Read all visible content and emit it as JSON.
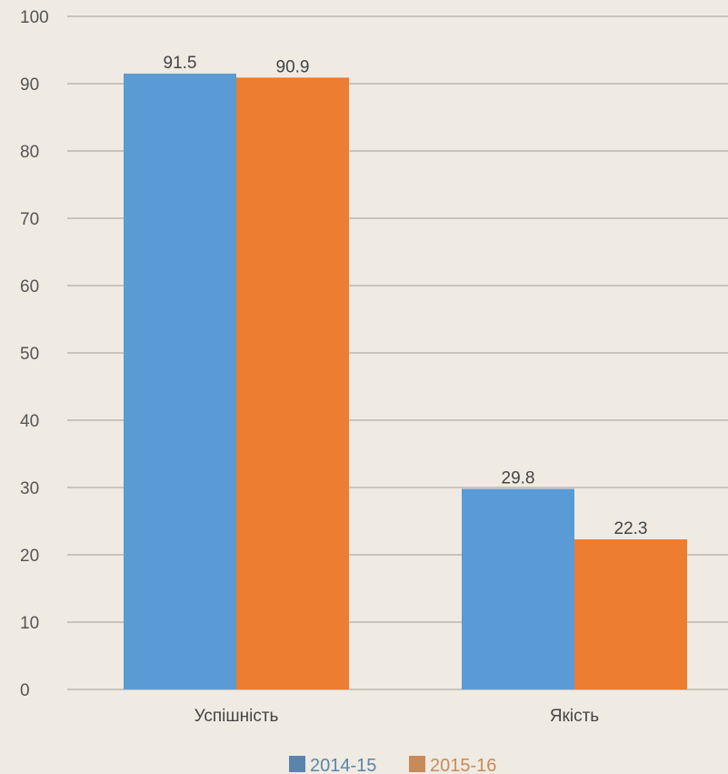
{
  "chart_data": {
    "type": "bar",
    "categories": [
      "Успішність",
      "Якість"
    ],
    "series": [
      {
        "name": "2014-15",
        "values": [
          91.5,
          29.8
        ],
        "color": "#5b9bd5",
        "legend_color": "#5a84ad"
      },
      {
        "name": "2015-16",
        "values": [
          90.9,
          22.3
        ],
        "color": "#ed7d31",
        "legend_color": "#c98a5a"
      }
    ],
    "ylim": [
      0,
      100
    ],
    "yticks": [
      0,
      10,
      20,
      30,
      40,
      50,
      60,
      70,
      80,
      90,
      100
    ],
    "grid": true,
    "legend_position": "bottom",
    "data_labels": true,
    "title": "",
    "xlabel": "",
    "ylabel": ""
  },
  "colors": {
    "background": "#efebe2",
    "gridline": "#c8c4bc",
    "tick_text": "#555555",
    "label_text": "#444444"
  }
}
